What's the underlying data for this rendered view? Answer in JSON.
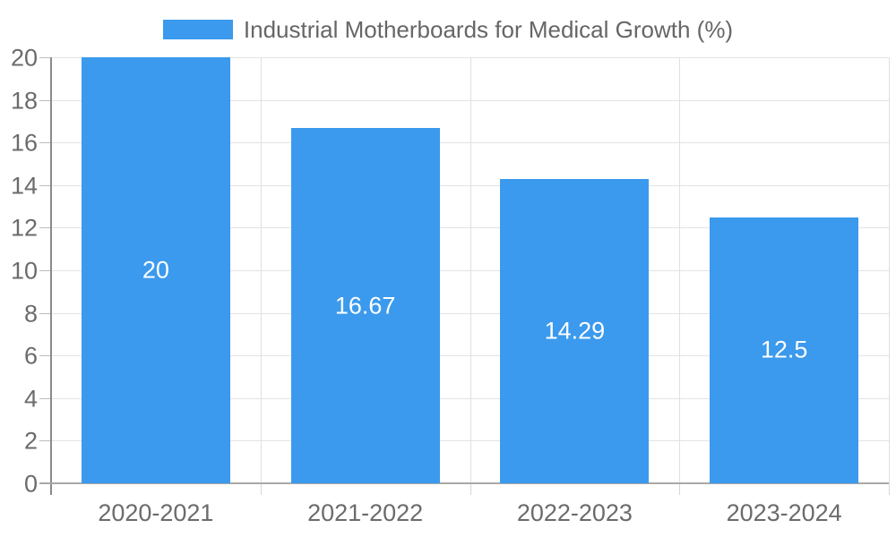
{
  "chart_data": {
    "type": "bar",
    "title": "Industrial Motherboards for Medical Growth (%)",
    "categories": [
      "2020-2021",
      "2021-2022",
      "2022-2023",
      "2023-2024"
    ],
    "values": [
      20,
      16.67,
      14.29,
      12.5
    ],
    "value_labels": [
      "20",
      "16.67",
      "14.29",
      "12.5"
    ],
    "xlabel": "",
    "ylabel": "",
    "ylim": [
      0,
      20
    ],
    "yticks": [
      0,
      2,
      4,
      6,
      8,
      10,
      12,
      14,
      16,
      18,
      20
    ],
    "grid": true,
    "legend_position": "top-center",
    "bar_width_fraction": 0.71,
    "colors": {
      "bar": "#3b9aed",
      "value_label": "#ffffff",
      "tick_label": "#6b6b6b",
      "legend_text": "#666666",
      "gridline": "#e3e3e3",
      "x_axis": "#a8a8a8",
      "y_axis": "#8a8a8a"
    }
  }
}
